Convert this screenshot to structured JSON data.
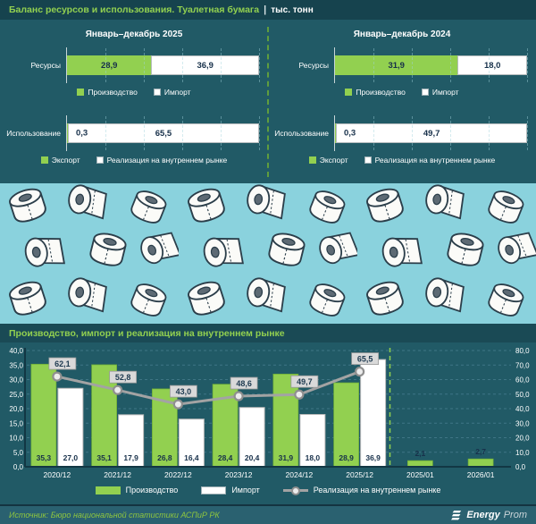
{
  "header": {
    "title": "Баланс ресурсов и использования. Туалетная бумага",
    "separator": "|",
    "unit": "тыс. тонн"
  },
  "balance_panels": [
    {
      "title": "Январь–декабрь 2025",
      "rows": [
        {
          "label": "Ресурсы",
          "values": [
            28.9,
            36.9
          ],
          "labels": [
            "28,9",
            "36,9"
          ],
          "legend": [
            "Производство",
            "Импорт"
          ]
        },
        {
          "label": "Использование",
          "values": [
            0.3,
            65.5
          ],
          "labels": [
            "0,3",
            "65,5"
          ],
          "legend": [
            "Экспорт",
            "Реализация на внутреннем рынке"
          ]
        }
      ]
    },
    {
      "title": "Январь–декабрь 2024",
      "rows": [
        {
          "label": "Ресурсы",
          "values": [
            31.9,
            18.0
          ],
          "labels": [
            "31,9",
            "18,0"
          ],
          "legend": [
            "Производство",
            "Импорт"
          ]
        },
        {
          "label": "Использование",
          "values": [
            0.3,
            49.7
          ],
          "labels": [
            "0,3",
            "49,7"
          ],
          "legend": [
            "Экспорт",
            "Реализация на внутреннем рынке"
          ]
        }
      ]
    }
  ],
  "section2": {
    "title": "Производство, импорт и реализация на внутреннем рынке"
  },
  "chart_data": {
    "type": "bar+line",
    "categories": [
      "2020/12",
      "2021/12",
      "2022/12",
      "2023/12",
      "2024/12",
      "2025/12",
      "2025/01",
      "2026/01"
    ],
    "series": [
      {
        "name": "Производство",
        "type": "bar",
        "axis": "left",
        "color": "#92d050",
        "values": [
          35.3,
          35.1,
          26.8,
          28.4,
          31.9,
          28.9,
          2.1,
          2.7
        ]
      },
      {
        "name": "Импорт",
        "type": "bar",
        "axis": "left",
        "color": "#ffffff",
        "values": [
          27.0,
          17.9,
          16.4,
          20.4,
          18.0,
          36.9,
          null,
          null
        ]
      },
      {
        "name": "Реализация на внутреннем рынке",
        "type": "line",
        "axis": "right",
        "color": "#a3a3a3",
        "values": [
          62.1,
          52.8,
          43.0,
          48.6,
          49.7,
          65.5,
          null,
          null
        ]
      }
    ],
    "left_axis": {
      "min": 0,
      "max": 40,
      "step": 5
    },
    "right_axis": {
      "min": 0,
      "max": 80,
      "step": 10
    },
    "separator_between": [
      5,
      6
    ],
    "grid": "horizontal-dashed",
    "legend_position": "bottom"
  },
  "footer": {
    "source": "Источник: Бюро национальной статистики АСПиР РК",
    "brand_bold": "Energy",
    "brand_light": "Prom"
  },
  "colors": {
    "accent_green": "#92d050",
    "bar_white": "#ffffff",
    "line_gray": "#a3a3a3",
    "background_teal": "#215a66",
    "header_teal": "#16434e",
    "pattern_blue": "#8ad2dd",
    "value_text": "#17304a"
  }
}
